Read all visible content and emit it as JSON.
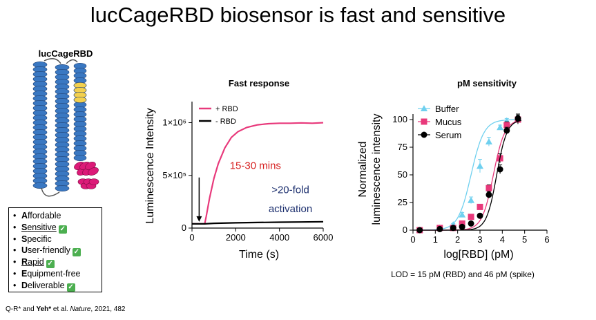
{
  "slide": {
    "title": "lucCageRBD biosensor is fast and sensitive",
    "protein_label": "lucCageRBD",
    "footnote": {
      "prefix": "Q-R* and ",
      "authors": "Yeh*",
      "middle": " et al. ",
      "journal": "Nature",
      "suffix": ", 2021, 482"
    },
    "lod_caption": "LOD = 15 pM (RBD) and 46 pM (spike)"
  },
  "colors": {
    "helix_blue": "#3a78c2",
    "helix_yellow": "#f3d04e",
    "helix_magenta": "#dc1a78",
    "pink": "#e8397b",
    "cyan": "#6fd0ef",
    "annot_red": "#d61f1f",
    "annot_navy": "#1c2f6e"
  },
  "features": [
    {
      "initial": "A",
      "rest": "ffordable",
      "underlined": false,
      "checked": false
    },
    {
      "initial": "S",
      "rest": "ensitive",
      "underlined": true,
      "checked": true
    },
    {
      "initial": "S",
      "rest": "pecific",
      "underlined": false,
      "checked": false
    },
    {
      "initial": "U",
      "rest": "ser-friendly",
      "underlined": false,
      "checked": true
    },
    {
      "initial": "R",
      "rest": "apid",
      "underlined": true,
      "checked": true
    },
    {
      "initial": "E",
      "rest": "quipment-free",
      "underlined": false,
      "checked": false
    },
    {
      "initial": "D",
      "rest": "eliverable",
      "underlined": false,
      "checked": true
    }
  ],
  "chart_data": [
    {
      "type": "line",
      "title": "Fast response",
      "xlabel": "Time (s)",
      "ylabel": "Luminescence Intensity",
      "xlim": [
        0,
        6000
      ],
      "ylim": [
        0,
        1200000
      ],
      "x_ticks": [
        0,
        2000,
        4000,
        6000
      ],
      "x_tick_labels": [
        "0",
        "2000",
        "4000",
        "6000"
      ],
      "y_ticks": [
        0,
        500000,
        1000000
      ],
      "y_tick_labels": [
        "0",
        "5×10⁵",
        "1×10⁶"
      ],
      "legend": "top-left",
      "series": [
        {
          "name": "+ RBD",
          "color": "#e8397b",
          "x": [
            0,
            580,
            650,
            800,
            1000,
            1200,
            1500,
            1800,
            2100,
            2500,
            3000,
            3500,
            4000,
            4500,
            5000,
            5500,
            6000
          ],
          "y": [
            40000,
            40000,
            110000,
            280000,
            470000,
            610000,
            760000,
            860000,
            915000,
            955000,
            980000,
            990000,
            995000,
            995000,
            998000,
            995000,
            1000000
          ]
        },
        {
          "name": "- RBD",
          "color": "#000000",
          "x": [
            0,
            580,
            1000,
            2000,
            3000,
            4000,
            5000,
            6000
          ],
          "y": [
            40000,
            40000,
            45000,
            50000,
            53000,
            56000,
            58000,
            60000
          ]
        }
      ],
      "annotations": [
        {
          "text": "15-30 mins",
          "color": "#d61f1f",
          "x": 2900,
          "y": 560000
        },
        {
          "text": ">20-fold",
          "color": "#1c2f6e",
          "x": 4500,
          "y": 330000
        },
        {
          "text": "activation",
          "color": "#1c2f6e",
          "x": 4500,
          "y": 150000
        }
      ],
      "arrow": {
        "x": 580,
        "y_from": 480000,
        "y_to": 60000
      }
    },
    {
      "type": "scatter",
      "title": "pM sensitivity",
      "xlabel": "log[RBD] (pM)",
      "ylabel_lines": [
        "Normalized",
        "luminescence intensity"
      ],
      "xlim": [
        0,
        6
      ],
      "ylim": [
        0,
        110
      ],
      "x_ticks": [
        0,
        1,
        2,
        3,
        4,
        5,
        6
      ],
      "x_tick_labels": [
        "0",
        "1",
        "2",
        "3",
        "4",
        "5",
        "6"
      ],
      "y_ticks": [
        0,
        25,
        50,
        75,
        100
      ],
      "y_tick_labels": [
        "0",
        "25",
        "50",
        "75",
        "100"
      ],
      "legend": "top-left",
      "series": [
        {
          "name": "Buffer",
          "marker": "triangle",
          "color": "#6fd0ef",
          "ec50": 2.6,
          "hill": 1.5,
          "x": [
            0.3,
            1.2,
            1.8,
            2.2,
            2.6,
            3.0,
            3.4,
            3.9,
            4.2,
            4.7
          ],
          "y": [
            0,
            2,
            5,
            14,
            27,
            58,
            80,
            93,
            99,
            101
          ],
          "err": [
            0,
            0,
            1,
            2,
            3,
            6,
            4,
            2,
            2,
            3
          ]
        },
        {
          "name": "Mucus",
          "marker": "square",
          "color": "#e8397b",
          "ec50": 3.6,
          "hill": 1.7,
          "x": [
            0.3,
            1.2,
            1.8,
            2.2,
            2.6,
            3.0,
            3.4,
            3.9,
            4.2,
            4.7
          ],
          "y": [
            0,
            2,
            2,
            6,
            12,
            21,
            38,
            65,
            95,
            100
          ],
          "err": [
            0,
            0,
            0,
            1,
            1,
            2,
            3,
            4,
            3,
            4
          ]
        },
        {
          "name": "Serum",
          "marker": "circle",
          "color": "#000000",
          "ec50": 3.75,
          "hill": 1.9,
          "x": [
            0.3,
            1.2,
            1.8,
            2.2,
            2.6,
            3.0,
            3.4,
            3.9,
            4.2,
            4.7
          ],
          "y": [
            0,
            1,
            2,
            3,
            6,
            13,
            32,
            55,
            90,
            101
          ],
          "err": [
            0,
            0,
            0,
            1,
            1,
            2,
            3,
            4,
            3,
            4
          ]
        }
      ]
    }
  ]
}
